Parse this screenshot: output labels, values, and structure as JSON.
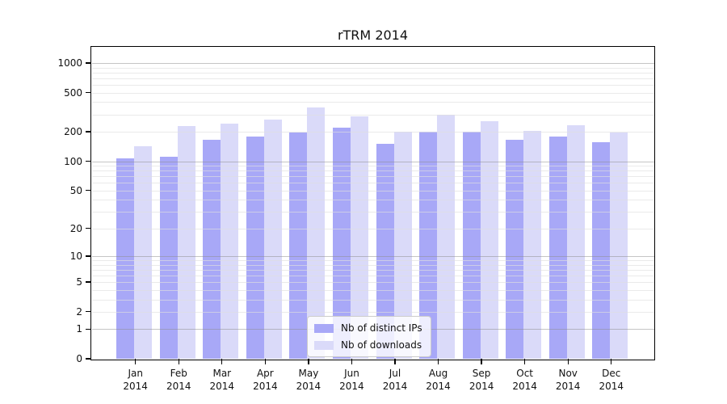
{
  "title": "rTRM 2014",
  "chart_data": {
    "type": "bar",
    "title": "rTRM 2014",
    "categories": [
      "Jan",
      "Feb",
      "Mar",
      "Apr",
      "May",
      "Jun",
      "Jul",
      "Aug",
      "Sep",
      "Oct",
      "Nov",
      "Dec"
    ],
    "x_year_line": "2014",
    "series": [
      {
        "name": "Nb of distinct IPs",
        "color": "#a8a8f7",
        "values": [
          107,
          111,
          165,
          178,
          196,
          222,
          150,
          199,
          199,
          165,
          180,
          157
        ]
      },
      {
        "name": "Nb of downloads",
        "color": "#dadaf9",
        "values": [
          143,
          228,
          240,
          264,
          356,
          285,
          200,
          298,
          258,
          205,
          235,
          195
        ]
      }
    ],
    "yscale": "log1p",
    "yticks": [
      0,
      1,
      2,
      5,
      10,
      20,
      50,
      100,
      200,
      500,
      1000
    ],
    "grid_major_at": [
      1,
      10,
      100,
      1000
    ],
    "ylim": [
      0,
      1460
    ],
    "grid": "horizontal",
    "legend_position": "lower-center-inside",
    "colors": {
      "bar_dark": "#a8a8f7",
      "bar_light": "#dadaf9",
      "grid_major": "#c6c6c6",
      "grid_minor": "#e9e9e9",
      "axis": "#000000"
    }
  }
}
